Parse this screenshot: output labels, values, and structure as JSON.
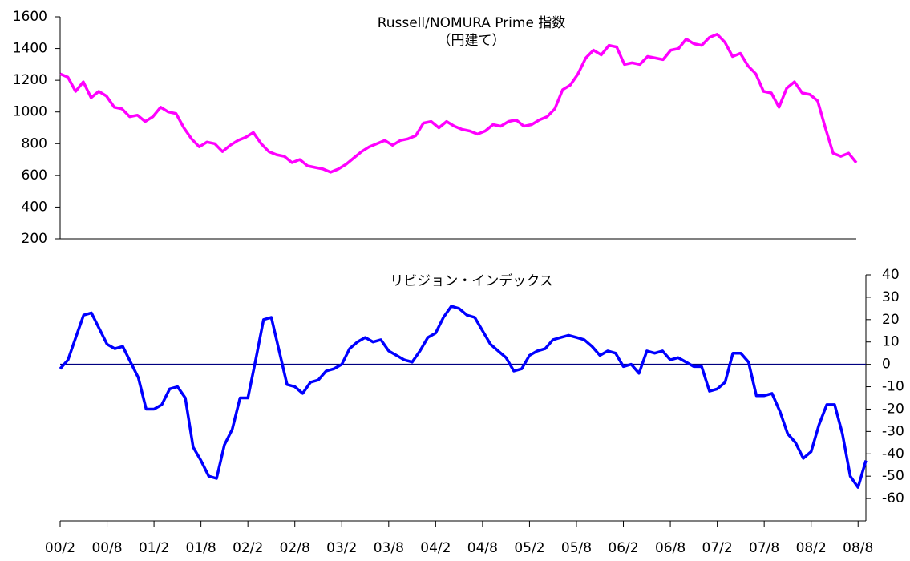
{
  "chart_data": [
    {
      "type": "line",
      "title": "Russell/NOMURA Prime 指数",
      "subtitle": "（円建て）",
      "series": [
        {
          "name": "Russell/NOMURA Prime",
          "color": "#ff00ff",
          "values": [
            1240,
            1220,
            1130,
            1190,
            1090,
            1130,
            1100,
            1030,
            1020,
            970,
            980,
            940,
            970,
            1030,
            1000,
            990,
            900,
            830,
            780,
            810,
            800,
            750,
            790,
            820,
            840,
            870,
            800,
            750,
            730,
            720,
            680,
            700,
            660,
            650,
            640,
            620,
            640,
            670,
            710,
            750,
            780,
            800,
            820,
            790,
            820,
            830,
            850,
            930,
            940,
            900,
            940,
            910,
            890,
            880,
            860,
            880,
            920,
            910,
            940,
            950,
            910,
            920,
            950,
            970,
            1020,
            1140,
            1170,
            1240,
            1340,
            1390,
            1360,
            1420,
            1410,
            1300,
            1310,
            1300,
            1350,
            1340,
            1330,
            1390,
            1400,
            1460,
            1430,
            1420,
            1470,
            1490,
            1440,
            1350,
            1370,
            1290,
            1240,
            1130,
            1120,
            1030,
            1150,
            1190,
            1120,
            1110,
            1070,
            900,
            740,
            720,
            740,
            680
          ]
        }
      ],
      "ylim": [
        200,
        1600
      ],
      "yticks": [
        200,
        400,
        600,
        800,
        1000,
        1200,
        1400,
        1600
      ]
    },
    {
      "type": "line",
      "title": "リビジョン・インデックス",
      "categories": [
        "00/2",
        null,
        null,
        null,
        null,
        null,
        "00/8",
        null,
        null,
        null,
        null,
        null,
        "01/2",
        null,
        null,
        null,
        null,
        null,
        "01/8",
        null,
        null,
        null,
        null,
        null,
        "02/2",
        null,
        null,
        null,
        null,
        null,
        "02/8",
        null,
        null,
        null,
        null,
        null,
        "03/2",
        null,
        null,
        null,
        null,
        null,
        "03/8",
        null,
        null,
        null,
        null,
        null,
        "04/2",
        null,
        null,
        null,
        null,
        null,
        "04/8",
        null,
        null,
        null,
        null,
        null,
        "05/2",
        null,
        null,
        null,
        null,
        null,
        "05/8",
        null,
        null,
        null,
        null,
        null,
        "06/2",
        null,
        null,
        null,
        null,
        null,
        "06/8",
        null,
        null,
        null,
        null,
        null,
        "07/2",
        null,
        null,
        null,
        null,
        null,
        "07/8",
        null,
        null,
        null,
        null,
        null,
        "08/2",
        null,
        null,
        null,
        null,
        null,
        "08/8",
        null
      ],
      "series": [
        {
          "name": "リビジョン・インデックス",
          "color": "#0000ff",
          "values": [
            -2,
            2,
            12,
            22,
            23,
            16,
            9,
            7,
            8,
            1,
            -6,
            -20,
            -20,
            -18,
            -11,
            -10,
            -15,
            -37,
            -43,
            -50,
            -51,
            -36,
            -29,
            -15,
            -15,
            2,
            20,
            21,
            6,
            -9,
            -10,
            -13,
            -8,
            -7,
            -3,
            -2,
            0,
            7,
            10,
            12,
            10,
            11,
            6,
            4,
            2,
            1,
            6,
            12,
            14,
            21,
            26,
            25,
            22,
            21,
            15,
            9,
            6,
            3,
            -3,
            -2,
            4,
            6,
            7,
            11,
            12,
            13,
            12,
            11,
            8,
            4,
            6,
            5,
            -1,
            0,
            -4,
            6,
            5,
            6,
            2,
            3,
            1,
            -1,
            -1,
            -12,
            -11,
            -8,
            5,
            5,
            1,
            -14,
            -14,
            -13,
            -21,
            -31,
            -35,
            -42,
            -39,
            -27,
            -18,
            -18,
            -31,
            -50,
            -55,
            -43
          ]
        }
      ],
      "ylim": [
        -70,
        40
      ],
      "yticks": [
        -60,
        -50,
        -40,
        -30,
        -20,
        -10,
        0,
        10,
        20,
        30,
        40
      ]
    }
  ]
}
